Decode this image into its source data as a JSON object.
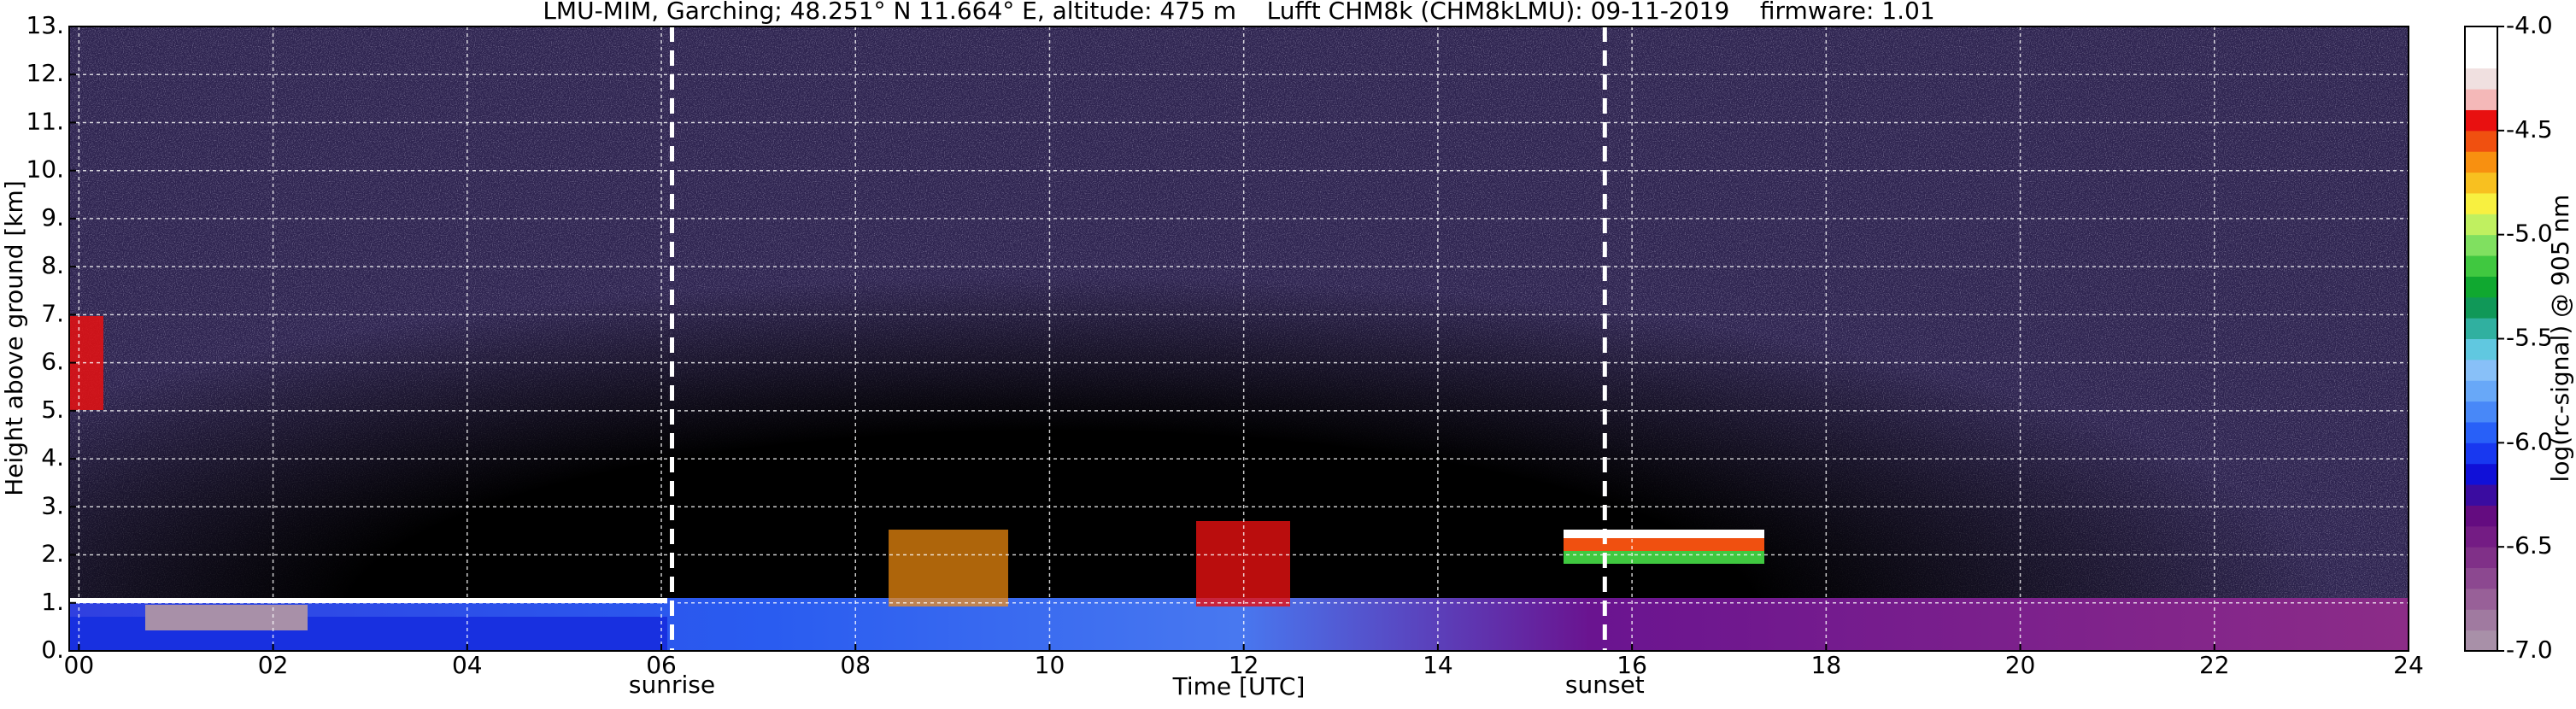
{
  "chart_data": {
    "type": "heatmap",
    "title": "LMU-MIM, Garching; 48.251° N 11.664° E, altitude: 475 m    Lufft CHM8k (CHM8kLMU): 09-11-2019    firmware: 1.01",
    "x_label": "Time [UTC]",
    "y_label": "Height above ground [km]",
    "xlim": [
      -0.1,
      24
    ],
    "ylim": [
      0,
      13
    ],
    "xticks": [
      {
        "value": 0,
        "label": "00"
      },
      {
        "value": 2,
        "label": "02"
      },
      {
        "value": 4,
        "label": "04"
      },
      {
        "value": 6,
        "label": "06"
      },
      {
        "value": 8,
        "label": "08"
      },
      10,
      12,
      14,
      16,
      18,
      20,
      22,
      24
    ],
    "yticks": [
      {
        "value": 0,
        "label": "0."
      },
      {
        "value": 1,
        "label": "1."
      },
      {
        "value": 2,
        "label": "2."
      },
      {
        "value": 3,
        "label": "3."
      },
      {
        "value": 4,
        "label": "4."
      },
      {
        "value": 5,
        "label": "5."
      },
      {
        "value": 6,
        "label": "6."
      },
      {
        "value": 7,
        "label": "7."
      },
      {
        "value": 8,
        "label": "8."
      },
      {
        "value": 9,
        "label": "9."
      },
      {
        "value": 10,
        "label": "10."
      },
      {
        "value": 11,
        "label": "11."
      },
      {
        "value": 12,
        "label": "12."
      },
      {
        "value": 13,
        "label": "13."
      }
    ],
    "grid": true,
    "annotations": [
      {
        "text": "sunrise",
        "x": 6.11
      },
      {
        "text": "sunset",
        "x": 15.72
      }
    ],
    "colorbar": {
      "label": "log(rc-signal) @ 905 nm",
      "lim": [
        -7,
        -4
      ],
      "ticks": [
        {
          "value": -4,
          "label": "-4.0"
        },
        -4.5,
        {
          "value": -5,
          "label": "-5.0"
        },
        -5.5,
        {
          "value": -6,
          "label": "-6.0"
        },
        -6.5,
        {
          "value": -7,
          "label": "-7.0"
        }
      ],
      "colors": [
        "#a890a8",
        "#a07aa0",
        "#986098",
        "#8c4890",
        "#803088",
        "#741c84",
        "#640c80",
        "#3a0ca0",
        "#1010d8",
        "#1838f0",
        "#2860f8",
        "#4888f8",
        "#68a8f8",
        "#88c0f8",
        "#60c8e0",
        "#30b0a0",
        "#109858",
        "#10a830",
        "#40c840",
        "#80e060",
        "#c0f060",
        "#f8f040",
        "#f8c020",
        "#f89010",
        "#f05010",
        "#e81010",
        "#f4b8b8",
        "#f0e0e0",
        "#ffffff",
        "#ffffff"
      ]
    }
  }
}
